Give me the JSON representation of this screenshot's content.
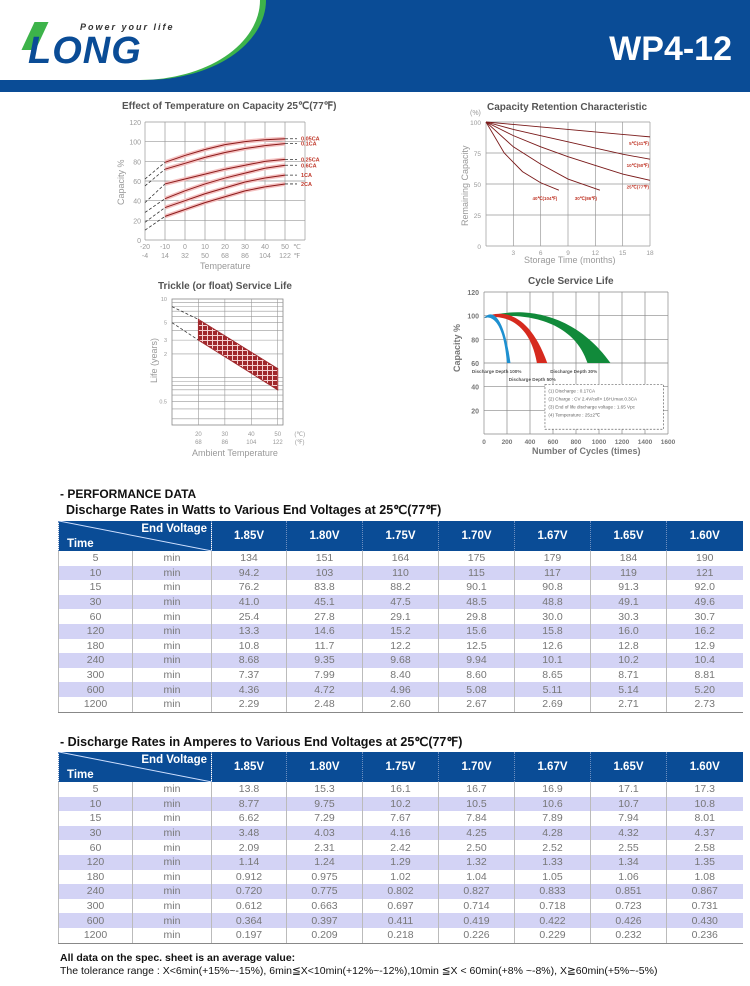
{
  "header": {
    "tagline": "Power your life",
    "brand": "LONG",
    "model": "WP4-12",
    "colors": {
      "brand_blue": "#0a4c96",
      "brand_green": "#3db34a"
    }
  },
  "chart_data": [
    {
      "type": "line",
      "title": "Effect of Temperature on Capacity  25℃(77℉)",
      "xlabel": "Temperature",
      "ylabel": "Capacity %",
      "x_ticks_c": [
        "-20",
        "-10",
        "0",
        "10",
        "20",
        "30",
        "40",
        "50"
      ],
      "x_ticks_f": [
        "-4",
        "14",
        "32",
        "50",
        "68",
        "86",
        "104",
        "122"
      ],
      "x_unit_c": "℃",
      "x_unit_f": "℉",
      "y_ticks": [
        "0",
        "20",
        "40",
        "60",
        "80",
        "100",
        "120"
      ],
      "xlim": [
        -20,
        60
      ],
      "ylim": [
        0,
        120
      ],
      "grid": true,
      "x": [
        -20,
        -10,
        0,
        10,
        20,
        30,
        40,
        50
      ],
      "series": [
        {
          "name": "0.05CA",
          "values": [
            62,
            79,
            86,
            92,
            97,
            100,
            102,
            103
          ]
        },
        {
          "name": "0.1CA",
          "values": [
            55,
            72,
            78,
            84,
            89,
            93,
            96,
            98
          ]
        },
        {
          "name": "0.25CA",
          "values": [
            38,
            57,
            62,
            67,
            72,
            76,
            80,
            82
          ]
        },
        {
          "name": "0.6CA",
          "values": [
            28,
            42,
            50,
            57,
            63,
            68,
            73,
            76
          ]
        },
        {
          "name": "1CA",
          "values": [
            18,
            33,
            40,
            47,
            53,
            59,
            63,
            66
          ]
        },
        {
          "name": "2CA",
          "values": [
            10,
            24,
            31,
            38,
            44,
            50,
            54,
            57
          ]
        }
      ],
      "color": "#c0392b"
    },
    {
      "type": "line",
      "title": "Capacity Retention Characteristic",
      "xlabel": "Storage Time (months)",
      "ylabel": "Remaining Capacity",
      "y_unit": "(%)",
      "x_ticks": [
        "3",
        "6",
        "9",
        "12",
        "15",
        "18"
      ],
      "y_ticks": [
        "0",
        "25",
        "50",
        "75",
        "100"
      ],
      "xlim": [
        0,
        18
      ],
      "ylim": [
        0,
        100
      ],
      "grid": true,
      "series": [
        {
          "name": "5℃(41℉)",
          "x": [
            0,
            3,
            6,
            9,
            12,
            15,
            18
          ],
          "values": [
            100,
            98,
            96,
            94,
            92,
            90,
            88
          ]
        },
        {
          "name": "10℃(50℉)",
          "x": [
            0,
            3,
            6,
            9,
            12,
            15,
            18
          ],
          "values": [
            100,
            94,
            89,
            84,
            79,
            74,
            70
          ]
        },
        {
          "name": "25℃(77℉)",
          "x": [
            0,
            3,
            6,
            9,
            12,
            15,
            18
          ],
          "values": [
            100,
            89,
            80,
            72,
            65,
            58,
            53
          ]
        },
        {
          "name": "30℃(86℉)",
          "x": [
            0,
            3,
            6,
            9,
            12.5
          ],
          "values": [
            100,
            80,
            66,
            54,
            45
          ]
        },
        {
          "name": "40℃(104℉)",
          "x": [
            0,
            2,
            4,
            6,
            8
          ],
          "values": [
            100,
            75,
            60,
            51,
            45
          ]
        }
      ],
      "color": "#c0392b"
    },
    {
      "type": "area",
      "title": "Trickle (or float) Service Life",
      "xlabel": "Ambient Temperature",
      "ylabel": "Life (years)",
      "x_ticks_c": [
        "20",
        "30",
        "40",
        "50"
      ],
      "x_ticks_f": [
        "68",
        "86",
        "104",
        "122"
      ],
      "x_unit_c": "(℃)",
      "x_unit_f": "(℉)",
      "y_ticks": [
        "10",
        "5",
        "3",
        "2",
        "0.5"
      ],
      "y_scale": "log",
      "band": {
        "x": [
          20,
          50
        ],
        "upper": [
          5.5,
          1.3
        ],
        "lower": [
          3,
          0.7
        ]
      },
      "extrapolation": {
        "x": [
          10,
          20
        ],
        "upper": [
          8,
          5.5
        ],
        "lower": [
          5,
          3
        ]
      },
      "color": "#a0282c"
    },
    {
      "type": "area",
      "title": "Cycle Service Life",
      "xlabel": "Number of Cycles (times)",
      "ylabel": "Capacity %",
      "x_ticks": [
        "0",
        "200",
        "400",
        "600",
        "800",
        "1000",
        "1200",
        "1400",
        "1600"
      ],
      "y_ticks": [
        "20",
        "40",
        "60",
        "80",
        "100",
        "120"
      ],
      "xlim": [
        0,
        1600
      ],
      "ylim": [
        0,
        120
      ],
      "grid": true,
      "series": [
        {
          "name": "Discharge Depth 100%",
          "color": "#1e90d0",
          "end_cycles": [
            200,
            230
          ],
          "peak": 103
        },
        {
          "name": "Discharge Depth 50%",
          "color": "#d62a1e",
          "end_cycles": [
            460,
            550
          ],
          "peak": 104
        },
        {
          "name": "Discharge Depth 30%",
          "color": "#118a3a",
          "end_cycles": [
            900,
            1100
          ],
          "peak": 106
        }
      ],
      "notes": [
        "(1) Discharge : 0.17CA",
        "(2) Charge : CV 2.4V/cell× 16H,Imax.0.3CA",
        "(3) End of life discharge voltage : 1.65 Vpc",
        "(4) Temperature : 25±2℃"
      ]
    }
  ],
  "performance": {
    "section_title": "- PERFORMANCE DATA",
    "watts_title": "Discharge Rates in Watts to Various End Voltages at 25℃(77℉)",
    "amps_title": "- Discharge Rates in Amperes to Various End Voltages at 25℃(77℉)",
    "corner_top": "End Voltage",
    "corner_bottom": "Time",
    "voltages": [
      "1.85V",
      "1.80V",
      "1.75V",
      "1.70V",
      "1.67V",
      "1.65V",
      "1.60V"
    ],
    "unit": "min",
    "watts_rows": [
      {
        "time": "5",
        "values": [
          "134",
          "151",
          "164",
          "175",
          "179",
          "184",
          "190"
        ]
      },
      {
        "time": "10",
        "values": [
          "94.2",
          "103",
          "110",
          "115",
          "117",
          "119",
          "121"
        ]
      },
      {
        "time": "15",
        "values": [
          "76.2",
          "83.8",
          "88.2",
          "90.1",
          "90.8",
          "91.3",
          "92.0"
        ]
      },
      {
        "time": "30",
        "values": [
          "41.0",
          "45.1",
          "47.5",
          "48.5",
          "48.8",
          "49.1",
          "49.6"
        ]
      },
      {
        "time": "60",
        "values": [
          "25.4",
          "27.8",
          "29.1",
          "29.8",
          "30.0",
          "30.3",
          "30.7"
        ]
      },
      {
        "time": "120",
        "values": [
          "13.3",
          "14.6",
          "15.2",
          "15.6",
          "15.8",
          "16.0",
          "16.2"
        ]
      },
      {
        "time": "180",
        "values": [
          "10.8",
          "11.7",
          "12.2",
          "12.5",
          "12.6",
          "12.8",
          "12.9"
        ]
      },
      {
        "time": "240",
        "values": [
          "8.68",
          "9.35",
          "9.68",
          "9.94",
          "10.1",
          "10.2",
          "10.4"
        ]
      },
      {
        "time": "300",
        "values": [
          "7.37",
          "7.99",
          "8.40",
          "8.60",
          "8.65",
          "8.71",
          "8.81"
        ]
      },
      {
        "time": "600",
        "values": [
          "4.36",
          "4.72",
          "4.96",
          "5.08",
          "5.11",
          "5.14",
          "5.20"
        ]
      },
      {
        "time": "1200",
        "values": [
          "2.29",
          "2.48",
          "2.60",
          "2.67",
          "2.69",
          "2.71",
          "2.73"
        ]
      }
    ],
    "amps_rows": [
      {
        "time": "5",
        "values": [
          "13.8",
          "15.3",
          "16.1",
          "16.7",
          "16.9",
          "17.1",
          "17.3"
        ]
      },
      {
        "time": "10",
        "values": [
          "8.77",
          "9.75",
          "10.2",
          "10.5",
          "10.6",
          "10.7",
          "10.8"
        ]
      },
      {
        "time": "15",
        "values": [
          "6.62",
          "7.29",
          "7.67",
          "7.84",
          "7.89",
          "7.94",
          "8.01"
        ]
      },
      {
        "time": "30",
        "values": [
          "3.48",
          "4.03",
          "4.16",
          "4.25",
          "4.28",
          "4.32",
          "4.37"
        ]
      },
      {
        "time": "60",
        "values": [
          "2.09",
          "2.31",
          "2.42",
          "2.50",
          "2.52",
          "2.55",
          "2.58"
        ]
      },
      {
        "time": "120",
        "values": [
          "1.14",
          "1.24",
          "1.29",
          "1.32",
          "1.33",
          "1.34",
          "1.35"
        ]
      },
      {
        "time": "180",
        "values": [
          "0.912",
          "0.975",
          "1.02",
          "1.04",
          "1.05",
          "1.06",
          "1.08"
        ]
      },
      {
        "time": "240",
        "values": [
          "0.720",
          "0.775",
          "0.802",
          "0.827",
          "0.833",
          "0.851",
          "0.867"
        ]
      },
      {
        "time": "300",
        "values": [
          "0.612",
          "0.663",
          "0.697",
          "0.714",
          "0.718",
          "0.723",
          "0.731"
        ]
      },
      {
        "time": "600",
        "values": [
          "0.364",
          "0.397",
          "0.411",
          "0.419",
          "0.422",
          "0.426",
          "0.430"
        ]
      },
      {
        "time": "1200",
        "values": [
          "0.197",
          "0.209",
          "0.218",
          "0.226",
          "0.229",
          "0.232",
          "0.236"
        ]
      }
    ],
    "note_bold": "All data on the spec. sheet is an average value:",
    "note_tolerance": "The tolerance range : X<6min(+15%~-15%), 6min≦X<10min(+12%~-12%),10min ≦X < 60min(+8% ~-8%), X≧60min(+5%~-5%)"
  }
}
